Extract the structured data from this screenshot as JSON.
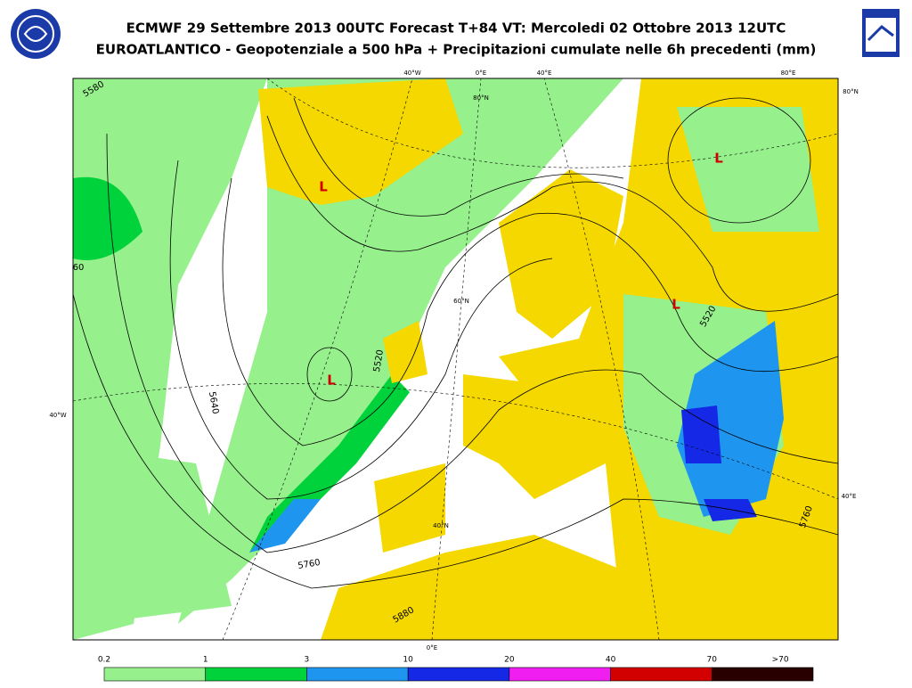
{
  "header": {
    "title": "ECMWF 29 Settembre 2013 00UTC Forecast T+84 VT: Mercoledi 02 Ottobre 2013 12UTC",
    "subtitle": "EUROATLANTICO - Geopotenziale a 500 hPa + Precipitazioni cumulate nelle 6h precedenti (mm)"
  },
  "map": {
    "graticule_labels": [
      "40°W",
      "0°E",
      "40°E",
      "80°E",
      "80°N",
      "80°N",
      "60°N",
      "40°W",
      "40°E",
      "40°N",
      "0°E"
    ],
    "contour_labels": [
      "5520",
      "5640",
      "5760",
      "5880",
      "5520",
      "5760",
      "5580",
      "60"
    ],
    "lows": [
      "L",
      "L",
      "L",
      "L"
    ]
  },
  "legend": {
    "labels": [
      "0.2",
      "1",
      "3",
      "10",
      "20",
      "40",
      "70",
      ">70"
    ],
    "colors": [
      "#96f08c",
      "#00d23c",
      "#1e96f0",
      "#1428e6",
      "#f01ef0",
      "#d20000",
      "#280000"
    ]
  }
}
